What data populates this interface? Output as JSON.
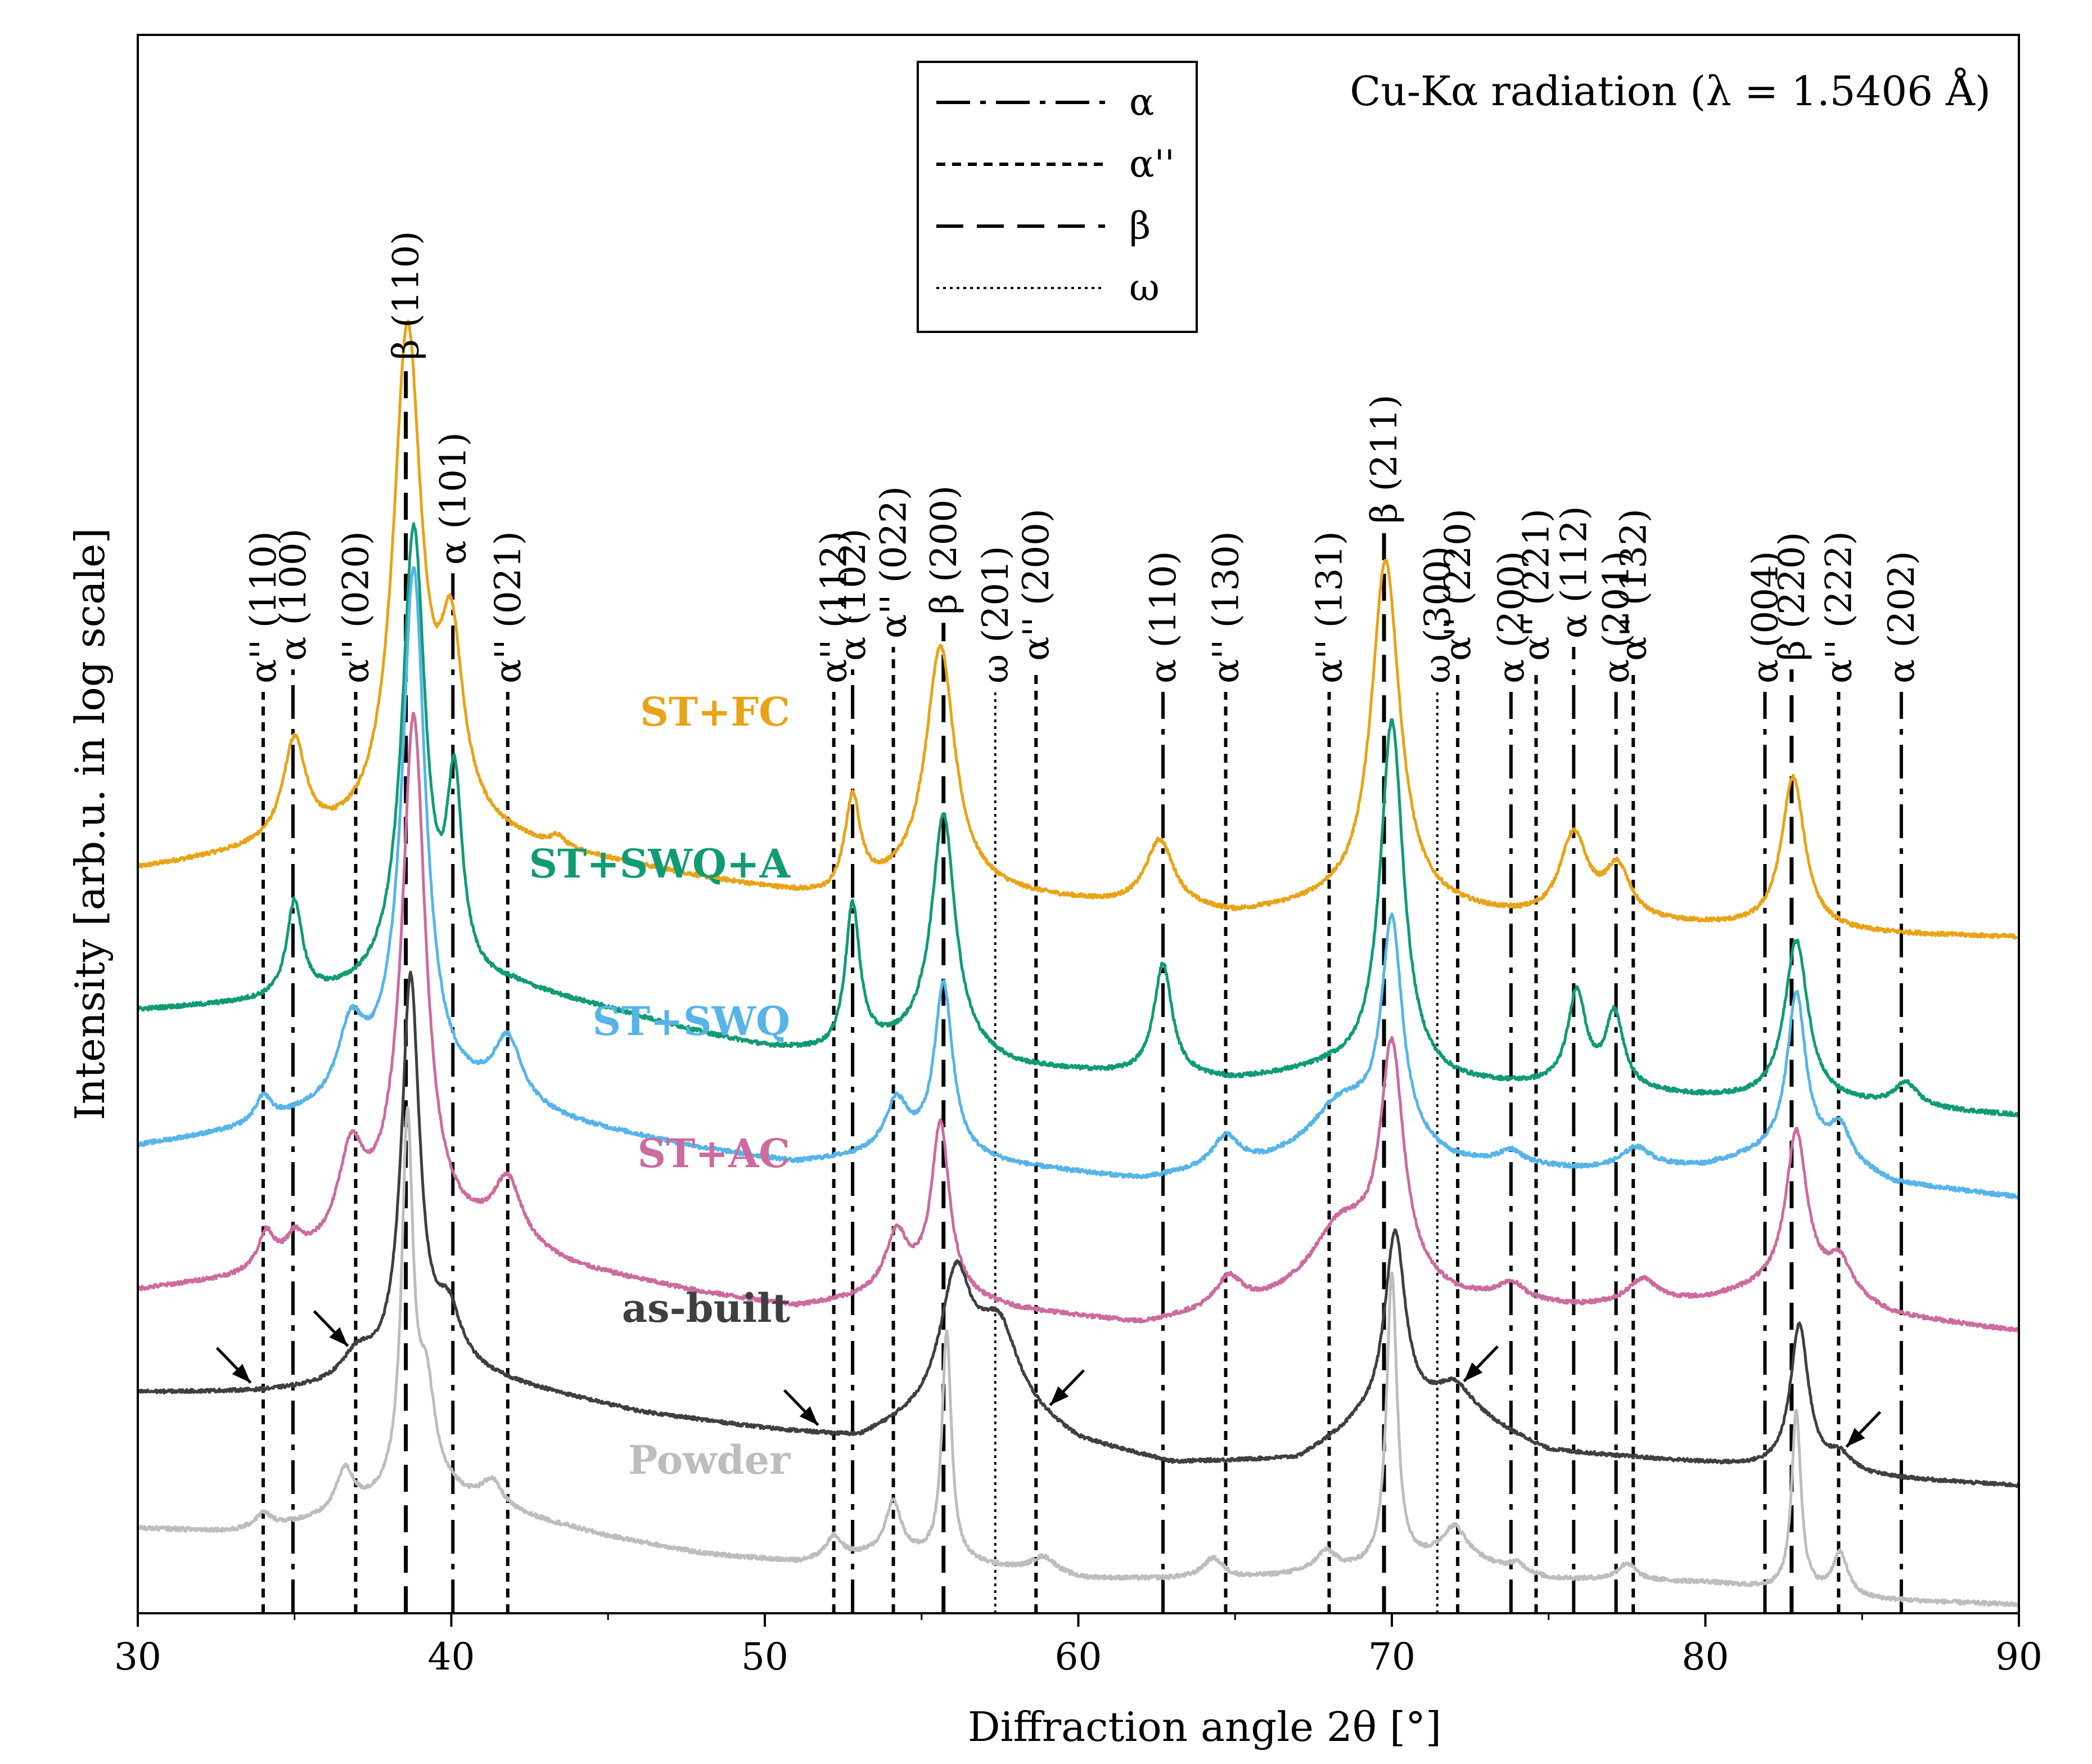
{
  "chart_data": {
    "type": "line",
    "title": "",
    "annotation": "Cu-Kα radiation (λ = 1.5406 Å)",
    "xlabel": "Diffraction angle 2θ [°]",
    "ylabel": "Intensity [arb.u. in log scale]",
    "xlim": [
      30,
      90
    ],
    "xticks": [
      30,
      40,
      50,
      60,
      70,
      80,
      90
    ],
    "xtick_labels": [
      "30",
      "40",
      "50",
      "60",
      "70",
      "80",
      "90"
    ],
    "y_scale": "log (arbitrary units, curves vertically offset)",
    "y_tick_labels": "none",
    "grid": false,
    "legend": {
      "placement": "top-center",
      "entries": [
        {
          "label": "α",
          "style": "dash-dot"
        },
        {
          "label": "α''",
          "style": "short-dash"
        },
        {
          "label": "β",
          "style": "long-dash"
        },
        {
          "label": "ω",
          "style": "dotted"
        }
      ]
    },
    "series": [
      {
        "name": "ST+FC",
        "color": "#E8A317",
        "baseline": 4.4,
        "noise": 0.012,
        "background": [
          [
            30,
            -0.02
          ],
          [
            34,
            0.08
          ],
          [
            37,
            0.12
          ],
          [
            40,
            0.18
          ],
          [
            45,
            0.02
          ],
          [
            48,
            -0.08
          ],
          [
            50,
            -0.14
          ],
          [
            52,
            -0.2
          ],
          [
            55,
            -0.1
          ],
          [
            58,
            -0.18
          ],
          [
            61,
            -0.24
          ],
          [
            65,
            -0.3
          ],
          [
            68,
            -0.24
          ],
          [
            72,
            -0.28
          ],
          [
            75,
            -0.34
          ],
          [
            80,
            -0.36
          ],
          [
            85,
            -0.4
          ],
          [
            90,
            -0.42
          ]
        ],
        "peaks": [
          [
            35.0,
            0.6,
            0.45
          ],
          [
            38.6,
            2.95,
            0.55
          ],
          [
            40.0,
            1.0,
            0.45
          ],
          [
            43.4,
            0.06,
            0.25
          ],
          [
            52.8,
            0.55,
            0.3
          ],
          [
            55.6,
            1.4,
            0.55
          ],
          [
            62.6,
            0.4,
            0.55
          ],
          [
            69.8,
            2.05,
            0.55
          ],
          [
            75.8,
            0.5,
            0.55
          ],
          [
            77.2,
            0.3,
            0.5
          ],
          [
            82.8,
            0.9,
            0.45
          ]
        ]
      },
      {
        "name": "ST+SWQ+A",
        "color": "#109B75",
        "baseline": 3.55,
        "noise": 0.012,
        "background": [
          [
            30,
            0.0
          ],
          [
            34,
            0.04
          ],
          [
            38,
            0.1
          ],
          [
            42,
            0.12
          ],
          [
            45,
            0.0
          ],
          [
            48,
            -0.14
          ],
          [
            50,
            -0.22
          ],
          [
            52,
            -0.26
          ],
          [
            55,
            -0.2
          ],
          [
            58,
            -0.34
          ],
          [
            61,
            -0.38
          ],
          [
            65,
            -0.42
          ],
          [
            68,
            -0.36
          ],
          [
            72,
            -0.44
          ],
          [
            75,
            -0.46
          ],
          [
            80,
            -0.52
          ],
          [
            85,
            -0.56
          ],
          [
            90,
            -0.62
          ]
        ],
        "peaks": [
          [
            35.0,
            0.56,
            0.3
          ],
          [
            38.8,
            2.7,
            0.45
          ],
          [
            40.1,
            1.1,
            0.3
          ],
          [
            52.8,
            0.85,
            0.28
          ],
          [
            55.7,
            1.38,
            0.45
          ],
          [
            62.7,
            0.66,
            0.35
          ],
          [
            70.0,
            2.1,
            0.45
          ],
          [
            75.9,
            0.56,
            0.35
          ],
          [
            77.1,
            0.44,
            0.35
          ],
          [
            82.9,
            0.95,
            0.45
          ],
          [
            86.4,
            0.14,
            0.45
          ]
        ]
      },
      {
        "name": "ST+SWQ",
        "color": "#56B4E9",
        "baseline": 2.75,
        "noise": 0.012,
        "background": [
          [
            30,
            0.0
          ],
          [
            33,
            0.08
          ],
          [
            36,
            0.2
          ],
          [
            38,
            0.35
          ],
          [
            41,
            0.25
          ],
          [
            44,
            0.12
          ],
          [
            48,
            -0.02
          ],
          [
            51,
            -0.1
          ],
          [
            55,
            -0.04
          ],
          [
            58,
            -0.12
          ],
          [
            62,
            -0.2
          ],
          [
            66,
            -0.1
          ],
          [
            69,
            0.05
          ],
          [
            72,
            -0.1
          ],
          [
            76,
            -0.14
          ],
          [
            80,
            -0.12
          ],
          [
            83,
            0.0
          ],
          [
            86,
            -0.22
          ],
          [
            90,
            -0.3
          ]
        ],
        "peaks": [
          [
            34.0,
            0.15,
            0.3
          ],
          [
            36.8,
            0.4,
            0.5
          ],
          [
            38.8,
            3.05,
            0.45
          ],
          [
            41.8,
            0.38,
            0.55
          ],
          [
            54.2,
            0.3,
            0.45
          ],
          [
            55.7,
            1.0,
            0.35
          ],
          [
            64.7,
            0.18,
            0.5
          ],
          [
            68.3,
            0.22,
            1.0
          ],
          [
            70.0,
            1.3,
            0.4
          ],
          [
            73.8,
            0.08,
            0.45
          ],
          [
            77.8,
            0.12,
            0.55
          ],
          [
            82.9,
            0.9,
            0.35
          ],
          [
            84.3,
            0.2,
            0.4
          ]
        ]
      },
      {
        "name": "ST+AC",
        "color": "#CC6B9E",
        "baseline": 1.9,
        "noise": 0.012,
        "background": [
          [
            30,
            0.0
          ],
          [
            33,
            0.06
          ],
          [
            36,
            0.2
          ],
          [
            38,
            0.38
          ],
          [
            41,
            0.28
          ],
          [
            44,
            0.12
          ],
          [
            48,
            -0.02
          ],
          [
            51,
            -0.1
          ],
          [
            55,
            -0.02
          ],
          [
            58,
            -0.12
          ],
          [
            62,
            -0.2
          ],
          [
            66,
            -0.08
          ],
          [
            69,
            0.1
          ],
          [
            72,
            -0.05
          ],
          [
            76,
            -0.1
          ],
          [
            80,
            -0.06
          ],
          [
            83,
            0.05
          ],
          [
            86,
            -0.15
          ],
          [
            90,
            -0.24
          ]
        ],
        "peaks": [
          [
            34.1,
            0.2,
            0.3
          ],
          [
            35.0,
            0.12,
            0.3
          ],
          [
            36.8,
            0.5,
            0.5
          ],
          [
            38.8,
            3.0,
            0.45
          ],
          [
            41.8,
            0.38,
            0.55
          ],
          [
            54.2,
            0.35,
            0.45
          ],
          [
            55.6,
            1.0,
            0.35
          ],
          [
            64.8,
            0.18,
            0.5
          ],
          [
            68.3,
            0.3,
            1.0
          ],
          [
            70.0,
            1.35,
            0.45
          ],
          [
            73.8,
            0.1,
            0.5
          ],
          [
            78.0,
            0.14,
            0.55
          ],
          [
            82.9,
            0.88,
            0.4
          ],
          [
            84.3,
            0.2,
            0.45
          ]
        ]
      },
      {
        "name": "as-built",
        "color": "#3F3F3F",
        "baseline": 1.3,
        "noise": 0.01,
        "background": [
          [
            30,
            0.0
          ],
          [
            34,
            0.0
          ],
          [
            36,
            0.02
          ],
          [
            40,
            0.12
          ],
          [
            43,
            0.0
          ],
          [
            46,
            -0.12
          ],
          [
            50,
            -0.22
          ],
          [
            53,
            -0.28
          ],
          [
            55,
            -0.15
          ],
          [
            57,
            0.0
          ],
          [
            60,
            -0.3
          ],
          [
            63,
            -0.42
          ],
          [
            67,
            -0.4
          ],
          [
            69,
            -0.2
          ],
          [
            72,
            -0.12
          ],
          [
            75,
            -0.35
          ],
          [
            80,
            -0.42
          ],
          [
            85,
            -0.5
          ],
          [
            90,
            -0.55
          ]
        ],
        "peaks": [
          [
            37.0,
            0.15,
            0.6
          ],
          [
            38.7,
            2.32,
            0.35
          ],
          [
            39.9,
            0.3,
            0.5
          ],
          [
            56.1,
            0.75,
            0.6
          ],
          [
            57.5,
            0.4,
            0.7
          ],
          [
            70.1,
            1.1,
            0.4
          ],
          [
            72.0,
            0.15,
            0.8
          ],
          [
            83.0,
            0.86,
            0.35
          ],
          [
            84.3,
            0.1,
            0.5
          ]
        ]
      },
      {
        "name": "Powder",
        "color": "#BDBDBD",
        "baseline": 0.5,
        "noise": 0.012,
        "background": [
          [
            30,
            0.0
          ],
          [
            33,
            -0.02
          ],
          [
            36,
            0.05
          ],
          [
            38,
            0.15
          ],
          [
            40,
            0.18
          ],
          [
            42,
            0.08
          ],
          [
            45,
            -0.05
          ],
          [
            48,
            -0.15
          ],
          [
            51,
            -0.2
          ],
          [
            54,
            -0.15
          ],
          [
            56,
            -0.2
          ],
          [
            60,
            -0.3
          ],
          [
            65,
            -0.3
          ],
          [
            69,
            -0.25
          ],
          [
            72,
            -0.18
          ],
          [
            75,
            -0.3
          ],
          [
            80,
            -0.32
          ],
          [
            85,
            -0.42
          ],
          [
            90,
            -0.45
          ]
        ],
        "peaks": [
          [
            34.0,
            0.08,
            0.3
          ],
          [
            36.6,
            0.25,
            0.35
          ],
          [
            38.6,
            2.15,
            0.22
          ],
          [
            39.2,
            0.6,
            0.35
          ],
          [
            41.3,
            0.15,
            0.4
          ],
          [
            52.2,
            0.13,
            0.3
          ],
          [
            54.1,
            0.3,
            0.3
          ],
          [
            55.8,
            1.35,
            0.18
          ],
          [
            58.9,
            0.1,
            0.5
          ],
          [
            64.3,
            0.12,
            0.4
          ],
          [
            67.9,
            0.12,
            0.4
          ],
          [
            70.0,
            1.72,
            0.2
          ],
          [
            72.0,
            0.18,
            0.5
          ],
          [
            74.0,
            0.05,
            0.3
          ],
          [
            77.5,
            0.1,
            0.35
          ],
          [
            82.9,
            1.06,
            0.18
          ],
          [
            84.3,
            0.25,
            0.3
          ]
        ]
      }
    ],
    "reference_lines": [
      {
        "x": 34.0,
        "phase": "α''",
        "style": "short-dash",
        "label": "α'' (110)"
      },
      {
        "x": 34.95,
        "phase": "α",
        "style": "dash-dot",
        "label": "α (100)"
      },
      {
        "x": 36.95,
        "phase": "α''",
        "style": "short-dash",
        "label": "α'' (020)"
      },
      {
        "x": 38.55,
        "phase": "β",
        "style": "long-dash",
        "label": "β (110)"
      },
      {
        "x": 40.05,
        "phase": "α",
        "style": "dash-dot",
        "label": "α (101)"
      },
      {
        "x": 41.8,
        "phase": "α''",
        "style": "short-dash",
        "label": "α'' (021)"
      },
      {
        "x": 52.2,
        "phase": "α''",
        "style": "short-dash",
        "label": "α'' (112)"
      },
      {
        "x": 52.8,
        "phase": "α",
        "style": "dash-dot",
        "label": "α (102)"
      },
      {
        "x": 54.1,
        "phase": "α''",
        "style": "short-dash",
        "label": "α'' (022)"
      },
      {
        "x": 55.7,
        "phase": "β",
        "style": "long-dash",
        "label": "β (200)"
      },
      {
        "x": 57.35,
        "phase": "ω",
        "style": "dotted",
        "label": "ω (201)"
      },
      {
        "x": 58.65,
        "phase": "α''",
        "style": "short-dash",
        "label": "α'' (200)"
      },
      {
        "x": 62.7,
        "phase": "α",
        "style": "dash-dot",
        "label": "α (110)"
      },
      {
        "x": 64.7,
        "phase": "α''",
        "style": "short-dash",
        "label": "α'' (130)"
      },
      {
        "x": 68.0,
        "phase": "α''",
        "style": "short-dash",
        "label": "α'' (131)"
      },
      {
        "x": 69.75,
        "phase": "β",
        "style": "long-dash",
        "label": "β (211)"
      },
      {
        "x": 71.45,
        "phase": "ω",
        "style": "dotted",
        "label": "ω (300)"
      },
      {
        "x": 72.1,
        "phase": "α''",
        "style": "short-dash",
        "label": "α'' (220)"
      },
      {
        "x": 73.8,
        "phase": "α",
        "style": "dash-dot",
        "label": "α (200)"
      },
      {
        "x": 74.6,
        "phase": "α''",
        "style": "short-dash",
        "label": "α'' (221)"
      },
      {
        "x": 75.8,
        "phase": "α",
        "style": "dash-dot",
        "label": "α (112)"
      },
      {
        "x": 77.15,
        "phase": "α",
        "style": "dash-dot",
        "label": "α (201)"
      },
      {
        "x": 77.7,
        "phase": "α''",
        "style": "short-dash",
        "label": "α'' (132)"
      },
      {
        "x": 81.9,
        "phase": "α",
        "style": "dash-dot",
        "label": "α (004)"
      },
      {
        "x": 82.75,
        "phase": "β",
        "style": "long-dash",
        "label": "β (220)"
      },
      {
        "x": 84.25,
        "phase": "α''",
        "style": "short-dash",
        "label": "α'' (222)"
      },
      {
        "x": 86.25,
        "phase": "α",
        "style": "dash-dot",
        "label": "α (202)"
      }
    ],
    "arrows": [
      {
        "x": 33.6,
        "series": "as-built",
        "direction": "down-right"
      },
      {
        "x": 36.7,
        "series": "as-built",
        "direction": "down-right"
      },
      {
        "x": 51.7,
        "series": "as-built",
        "direction": "down-right"
      },
      {
        "x": 59.1,
        "series": "as-built",
        "direction": "down-left"
      },
      {
        "x": 72.3,
        "series": "as-built",
        "direction": "down-left"
      },
      {
        "x": 84.5,
        "series": "as-built",
        "direction": "down-left"
      }
    ]
  }
}
